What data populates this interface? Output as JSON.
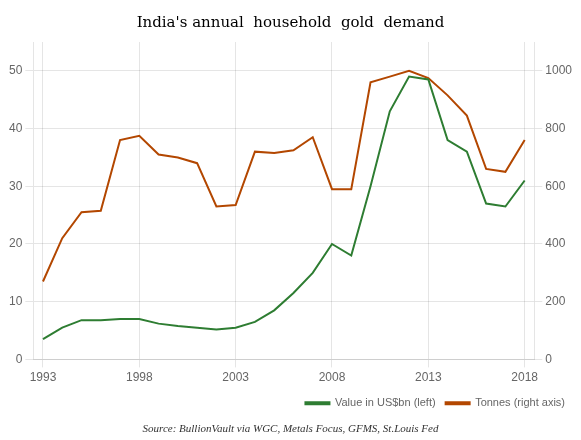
{
  "chart_data": {
    "type": "line",
    "title": "India's annual  household  gold  demand",
    "annotations": [
      "Source: BullionVault via WGC, Metals Focus, GFMS, St.Louis Fed"
    ],
    "x": [
      1993,
      1994,
      1995,
      1996,
      1997,
      1998,
      1999,
      2000,
      2001,
      2002,
      2003,
      2004,
      2005,
      2006,
      2007,
      2008,
      2009,
      2010,
      2011,
      2012,
      2013,
      2014,
      2015,
      2016,
      2017,
      2018
    ],
    "series": [
      {
        "name": "Value in US$bn (left)",
        "color": "#2e7d32",
        "values": [
          3.5,
          5.5,
          6.8,
          6.8,
          7.0,
          7.0,
          6.2,
          5.8,
          5.5,
          5.2,
          5.5,
          6.5,
          8.5,
          11.5,
          15.0,
          20.0,
          18.0,
          30.0,
          43.0,
          49.0,
          48.5,
          38.0,
          36.0,
          27.0,
          26.5,
          31.0
        ]
      },
      {
        "name": "Tonnes (right axis)",
        "color": "#b34700",
        "axis": "y2",
        "values": [
          270,
          420,
          510,
          515,
          760,
          775,
          710,
          700,
          680,
          530,
          535,
          720,
          715,
          725,
          770,
          590,
          590,
          960,
          980,
          1000,
          975,
          915,
          845,
          660,
          650,
          760
        ]
      }
    ],
    "xlim": [
      1992.5,
      2018.5
    ],
    "xticks": [
      1993,
      1998,
      2003,
      2008,
      2013,
      2018
    ],
    "ylim": [
      0,
      55
    ],
    "yticks": [
      0,
      10,
      20,
      30,
      40,
      50
    ],
    "y2lim": [
      0,
      1100
    ],
    "y2ticks": [
      0,
      200,
      400,
      600,
      800,
      1000
    ],
    "grid": true,
    "legend": "lower right"
  }
}
